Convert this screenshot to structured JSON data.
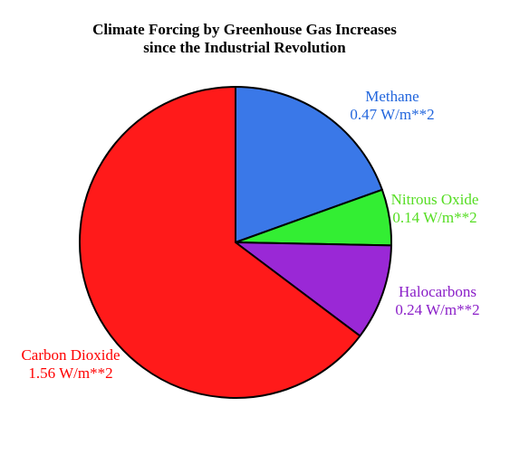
{
  "chart_data": {
    "type": "pie",
    "title_lines": [
      "Climate Forcing by Greenhouse Gas Increases",
      "since the Industrial Revolution"
    ],
    "slices": [
      {
        "name": "Methane",
        "value_label": "0.47 W/m**2",
        "value": 0.47,
        "color": "#3a78e8"
      },
      {
        "name": "Nitrous Oxide",
        "value_label": "0.14 W/m**2",
        "value": 0.14,
        "color": "#33ee33"
      },
      {
        "name": "Halocarbons",
        "value_label": "0.24 W/m**2",
        "value": 0.24,
        "color": "#9a28d6"
      },
      {
        "name": "Carbon Dioxide",
        "value_label": "1.56 W/m**2",
        "value": 1.56,
        "color": "#ff1a1a"
      }
    ],
    "label_colors": [
      "#2266dd",
      "#55dd22",
      "#8a1ec8",
      "#ff0000"
    ],
    "start_angle": "12 o'clock",
    "direction": "clockwise",
    "legend": "none"
  }
}
